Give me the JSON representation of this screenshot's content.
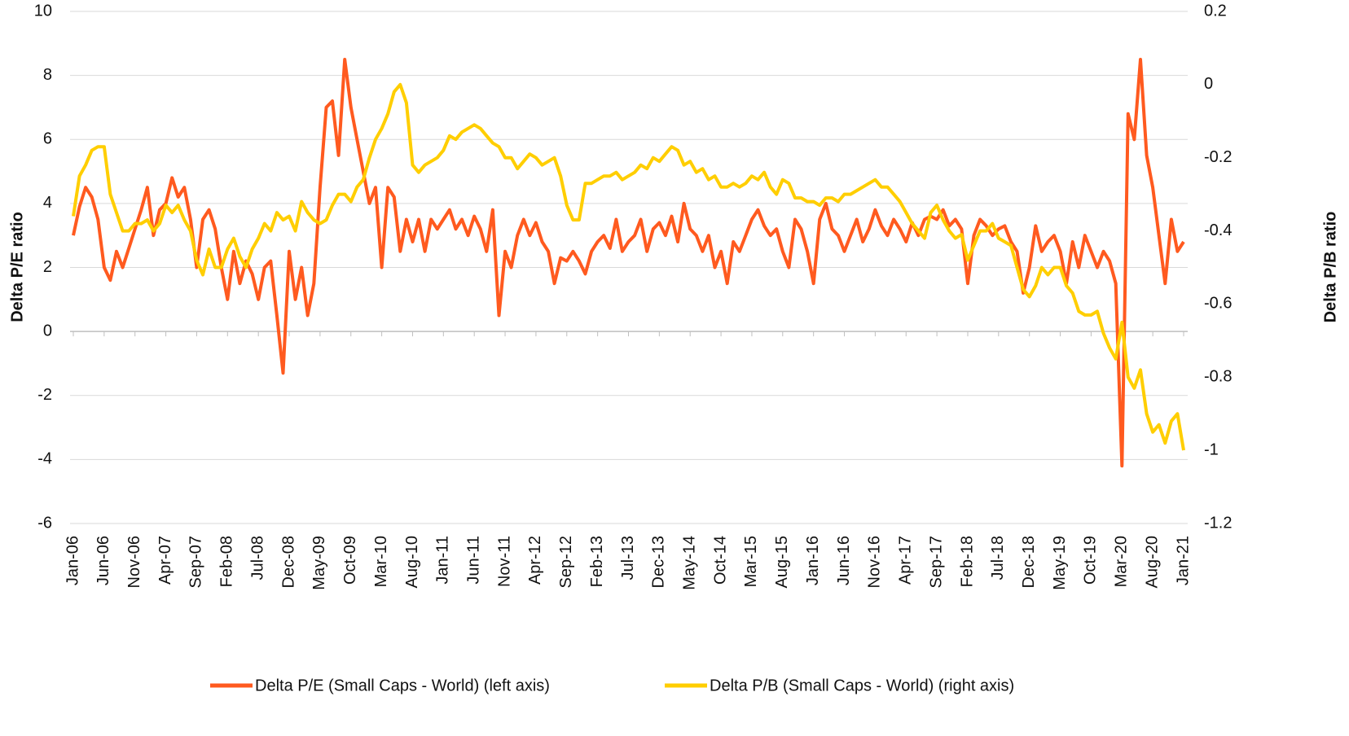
{
  "chart_data": {
    "type": "line",
    "y_label": "Delta P/E ratio",
    "y2_label": "Delta P/B ratio",
    "categories": [
      "Jan-06",
      null,
      null,
      null,
      null,
      "Jun-06",
      null,
      null,
      null,
      null,
      "Nov-06",
      null,
      null,
      null,
      null,
      "Apr-07",
      null,
      null,
      null,
      null,
      "Sep-07",
      null,
      null,
      null,
      null,
      "Feb-08",
      null,
      null,
      null,
      null,
      "Jul-08",
      null,
      null,
      null,
      null,
      "Dec-08",
      null,
      null,
      null,
      null,
      "May-09",
      null,
      null,
      null,
      null,
      "Oct-09",
      null,
      null,
      null,
      null,
      "Mar-10",
      null,
      null,
      null,
      null,
      "Aug-10",
      null,
      null,
      null,
      null,
      "Jan-11",
      null,
      null,
      null,
      null,
      "Jun-11",
      null,
      null,
      null,
      null,
      "Nov-11",
      null,
      null,
      null,
      null,
      "Apr-12",
      null,
      null,
      null,
      null,
      "Sep-12",
      null,
      null,
      null,
      null,
      "Feb-13",
      null,
      null,
      null,
      null,
      "Jul-13",
      null,
      null,
      null,
      null,
      "Dec-13",
      null,
      null,
      null,
      null,
      "May-14",
      null,
      null,
      null,
      null,
      "Oct-14",
      null,
      null,
      null,
      null,
      "Mar-15",
      null,
      null,
      null,
      null,
      "Aug-15",
      null,
      null,
      null,
      null,
      "Jan-16",
      null,
      null,
      null,
      null,
      "Jun-16",
      null,
      null,
      null,
      null,
      "Nov-16",
      null,
      null,
      null,
      null,
      "Apr-17",
      null,
      null,
      null,
      null,
      "Sep-17",
      null,
      null,
      null,
      null,
      "Feb-18",
      null,
      null,
      null,
      null,
      "Jul-18",
      null,
      null,
      null,
      null,
      "Dec-18",
      null,
      null,
      null,
      null,
      "May-19",
      null,
      null,
      null,
      null,
      "Oct-19",
      null,
      null,
      null,
      null,
      "Mar-20",
      null,
      null,
      null,
      null,
      "Aug-20",
      null,
      null,
      null,
      null,
      "Jan-21"
    ],
    "series": [
      {
        "name": "Delta P/E (Small Caps - World) (left axis)",
        "color": "#ff5a1f",
        "axis": "y",
        "values": [
          3.0,
          3.9,
          4.5,
          4.2,
          3.5,
          2.0,
          1.6,
          2.5,
          2.0,
          2.6,
          3.2,
          3.8,
          4.5,
          3.0,
          3.8,
          4.0,
          4.8,
          4.2,
          4.5,
          3.5,
          2.0,
          3.5,
          3.8,
          3.2,
          2.0,
          1.0,
          2.5,
          1.5,
          2.2,
          1.8,
          1.0,
          2.0,
          2.2,
          0.5,
          -1.3,
          2.5,
          1.0,
          2.0,
          0.5,
          1.5,
          4.5,
          7.0,
          7.2,
          5.5,
          8.5,
          7.0,
          6.0,
          5.0,
          4.0,
          4.5,
          2.0,
          4.5,
          4.2,
          2.5,
          3.5,
          2.8,
          3.5,
          2.5,
          3.5,
          3.2,
          3.5,
          3.8,
          3.2,
          3.5,
          3.0,
          3.6,
          3.2,
          2.5,
          3.8,
          0.5,
          2.5,
          2.0,
          3.0,
          3.5,
          3.0,
          3.4,
          2.8,
          2.5,
          1.5,
          2.3,
          2.2,
          2.5,
          2.2,
          1.8,
          2.5,
          2.8,
          3.0,
          2.6,
          3.5,
          2.5,
          2.8,
          3.0,
          3.5,
          2.5,
          3.2,
          3.4,
          3.0,
          3.6,
          2.8,
          4.0,
          3.2,
          3.0,
          2.5,
          3.0,
          2.0,
          2.5,
          1.5,
          2.8,
          2.5,
          3.0,
          3.5,
          3.8,
          3.3,
          3.0,
          3.2,
          2.5,
          2.0,
          3.5,
          3.2,
          2.5,
          1.5,
          3.5,
          4.0,
          3.2,
          3.0,
          2.5,
          3.0,
          3.5,
          2.8,
          3.2,
          3.8,
          3.3,
          3.0,
          3.5,
          3.2,
          2.8,
          3.4,
          3.0,
          3.5,
          3.6,
          3.5,
          3.8,
          3.3,
          3.5,
          3.2,
          1.5,
          3.0,
          3.5,
          3.3,
          3.0,
          3.2,
          3.3,
          2.8,
          2.5,
          1.2,
          2.0,
          3.3,
          2.5,
          2.8,
          3.0,
          2.5,
          1.5,
          2.8,
          2.0,
          3.0,
          2.5,
          2.0,
          2.5,
          2.2,
          1.5,
          -4.2,
          6.8,
          6.0,
          8.5,
          5.5,
          4.5,
          3.0,
          1.5,
          3.5,
          2.5,
          2.8
        ]
      },
      {
        "name": "Delta P/B (Small Caps - World) (right axis)",
        "color": "#ffce00",
        "axis": "y2",
        "values": [
          -0.36,
          -0.25,
          -0.22,
          -0.18,
          -0.17,
          -0.17,
          -0.3,
          -0.35,
          -0.4,
          -0.4,
          -0.38,
          -0.38,
          -0.37,
          -0.4,
          -0.38,
          -0.33,
          -0.35,
          -0.33,
          -0.37,
          -0.4,
          -0.48,
          -0.52,
          -0.45,
          -0.5,
          -0.5,
          -0.45,
          -0.42,
          -0.47,
          -0.5,
          -0.45,
          -0.42,
          -0.38,
          -0.4,
          -0.35,
          -0.37,
          -0.36,
          -0.4,
          -0.32,
          -0.35,
          -0.37,
          -0.38,
          -0.37,
          -0.33,
          -0.3,
          -0.3,
          -0.32,
          -0.28,
          -0.26,
          -0.2,
          -0.15,
          -0.12,
          -0.08,
          -0.02,
          0.0,
          -0.05,
          -0.22,
          -0.24,
          -0.22,
          -0.21,
          -0.2,
          -0.18,
          -0.14,
          -0.15,
          -0.13,
          -0.12,
          -0.11,
          -0.12,
          -0.14,
          -0.16,
          -0.17,
          -0.2,
          -0.2,
          -0.23,
          -0.21,
          -0.19,
          -0.2,
          -0.22,
          -0.21,
          -0.2,
          -0.25,
          -0.33,
          -0.37,
          -0.37,
          -0.27,
          -0.27,
          -0.26,
          -0.25,
          -0.25,
          -0.24,
          -0.26,
          -0.25,
          -0.24,
          -0.22,
          -0.23,
          -0.2,
          -0.21,
          -0.19,
          -0.17,
          -0.18,
          -0.22,
          -0.21,
          -0.24,
          -0.23,
          -0.26,
          -0.25,
          -0.28,
          -0.28,
          -0.27,
          -0.28,
          -0.27,
          -0.25,
          -0.26,
          -0.24,
          -0.28,
          -0.3,
          -0.26,
          -0.27,
          -0.31,
          -0.31,
          -0.32,
          -0.32,
          -0.33,
          -0.31,
          -0.31,
          -0.32,
          -0.3,
          -0.3,
          -0.29,
          -0.28,
          -0.27,
          -0.26,
          -0.28,
          -0.28,
          -0.3,
          -0.32,
          -0.35,
          -0.38,
          -0.4,
          -0.42,
          -0.35,
          -0.33,
          -0.37,
          -0.4,
          -0.42,
          -0.41,
          -0.48,
          -0.44,
          -0.4,
          -0.4,
          -0.38,
          -0.42,
          -0.43,
          -0.44,
          -0.5,
          -0.56,
          -0.58,
          -0.55,
          -0.5,
          -0.52,
          -0.5,
          -0.5,
          -0.55,
          -0.57,
          -0.62,
          -0.63,
          -0.63,
          -0.62,
          -0.68,
          -0.72,
          -0.75,
          -0.65,
          -0.8,
          -0.83,
          -0.78,
          -0.9,
          -0.95,
          -0.93,
          -0.98,
          -0.92,
          -0.9,
          -1.0
        ]
      }
    ],
    "ylim": [
      -6,
      10
    ],
    "yticks": [
      -6,
      -4,
      -2,
      0,
      2,
      4,
      6,
      8,
      10
    ],
    "y2lim": [
      -1.2,
      0.2
    ],
    "y2ticks": [
      -1.2,
      -1,
      -0.8,
      -0.6,
      -0.4,
      -0.2,
      0,
      0.2
    ],
    "grid": true,
    "legend": "bottom"
  }
}
